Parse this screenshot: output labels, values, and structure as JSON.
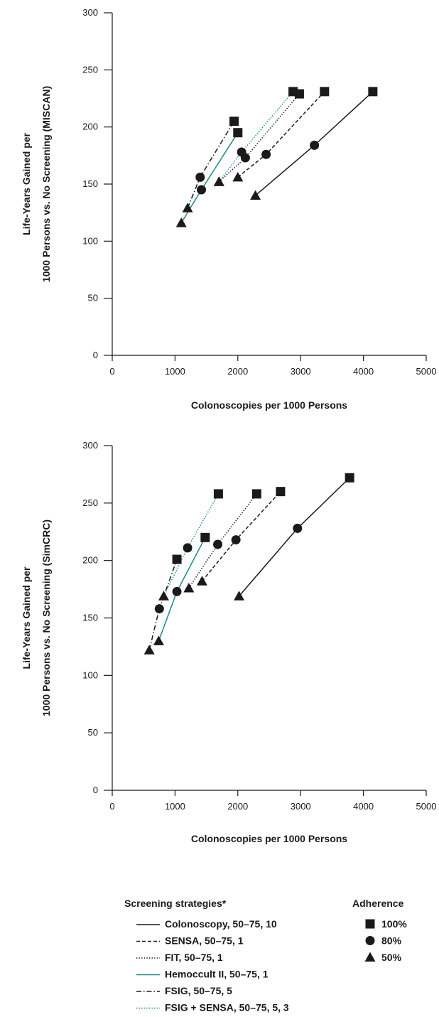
{
  "chart_data": [
    {
      "type": "line",
      "model": "MISCAN",
      "xlabel": "Colonoscopies per 1000 Persons",
      "ylabel_line1": "Life-Years Gained per",
      "ylabel_line2": "1000 Persons vs. No Screening (MISCAN)",
      "xlim": [
        0,
        5000
      ],
      "ylim": [
        0,
        300
      ],
      "xticks": [
        0,
        1000,
        2000,
        3000,
        4000,
        5000
      ],
      "yticks": [
        0,
        50,
        100,
        150,
        200,
        250,
        300
      ],
      "grid": false,
      "series": [
        {
          "name": "Colonoscopy, 50–75, 10",
          "points": [
            [
              2280,
              140
            ],
            [
              3220,
              184
            ],
            [
              4150,
              231
            ]
          ]
        },
        {
          "name": "SENSA, 50–75, 1",
          "points": [
            [
              2000,
              156
            ],
            [
              2450,
              176
            ],
            [
              3380,
              231
            ]
          ]
        },
        {
          "name": "FIT, 50–75, 1",
          "points": [
            [
              1700,
              152
            ],
            [
              2120,
              173
            ],
            [
              2980,
              229
            ]
          ]
        },
        {
          "name": "Hemoccult II, 50–75, 1",
          "points": [
            [
              1100,
              116
            ],
            [
              1420,
              145
            ],
            [
              2000,
              195
            ]
          ]
        },
        {
          "name": "FSIG, 50–75, 5",
          "points": [
            [
              1200,
              129
            ],
            [
              1400,
              156
            ],
            [
              1940,
              205
            ]
          ]
        },
        {
          "name": "FSIG + SENSA, 50–75, 5, 3",
          "points": [
            [
              1700,
              152
            ],
            [
              2060,
              178
            ],
            [
              2880,
              231
            ]
          ]
        }
      ]
    },
    {
      "type": "line",
      "model": "SimCRC",
      "xlabel": "Colonoscopies per 1000 Persons",
      "ylabel_line1": "Life-Years Gained per",
      "ylabel_line2": "1000 Persons vs. No Screening (SimCRC)",
      "xlim": [
        0,
        5000
      ],
      "ylim": [
        0,
        300
      ],
      "xticks": [
        0,
        1000,
        2000,
        3000,
        4000,
        5000
      ],
      "yticks": [
        0,
        50,
        100,
        150,
        200,
        250,
        300
      ],
      "grid": false,
      "series": [
        {
          "name": "Colonoscopy, 50–75, 10",
          "points": [
            [
              2020,
              169
            ],
            [
              2950,
              228
            ],
            [
              3780,
              272
            ]
          ]
        },
        {
          "name": "SENSA, 50–75, 1",
          "points": [
            [
              1430,
              182
            ],
            [
              1970,
              218
            ],
            [
              2680,
              260
            ]
          ]
        },
        {
          "name": "FIT, 50–75, 1",
          "points": [
            [
              1220,
              176
            ],
            [
              1680,
              214
            ],
            [
              2300,
              258
            ]
          ]
        },
        {
          "name": "Hemoccult II, 50–75, 1",
          "points": [
            [
              740,
              130
            ],
            [
              1030,
              173
            ],
            [
              1480,
              220
            ]
          ]
        },
        {
          "name": "FSIG, 50–75, 5",
          "points": [
            [
              590,
              122
            ],
            [
              750,
              158
            ],
            [
              1030,
              201
            ]
          ]
        },
        {
          "name": "FSIG + SENSA, 50–75, 5, 3",
          "points": [
            [
              820,
              169
            ],
            [
              1200,
              211
            ],
            [
              1690,
              258
            ]
          ]
        }
      ]
    }
  ],
  "legend": {
    "strategies_title": "Screening strategies*",
    "adherence_title": "Adherence",
    "strategies": [
      {
        "label": "Colonoscopy, 50–75, 10",
        "style": "solid",
        "color": "#1a1a1a"
      },
      {
        "label": "SENSA, 50–75, 1",
        "style": "dashed",
        "color": "#1a1a1a"
      },
      {
        "label": "FIT, 50–75, 1",
        "style": "dotted",
        "color": "#1a1a1a"
      },
      {
        "label": "Hemoccult II, 50–75, 1",
        "style": "solid",
        "color": "#1b8a8a"
      },
      {
        "label": "FSIG, 50–75, 5",
        "style": "dashdot",
        "color": "#1a1a1a"
      },
      {
        "label": "FSIG + SENSA, 50–75, 5, 3",
        "style": "dotted",
        "color": "#1b8a8a"
      }
    ],
    "adherence": [
      {
        "label": "100%",
        "marker": "square"
      },
      {
        "label": "80%",
        "marker": "circle"
      },
      {
        "label": "50%",
        "marker": "triangle"
      }
    ]
  },
  "marker_order": [
    "triangle",
    "circle",
    "square"
  ]
}
